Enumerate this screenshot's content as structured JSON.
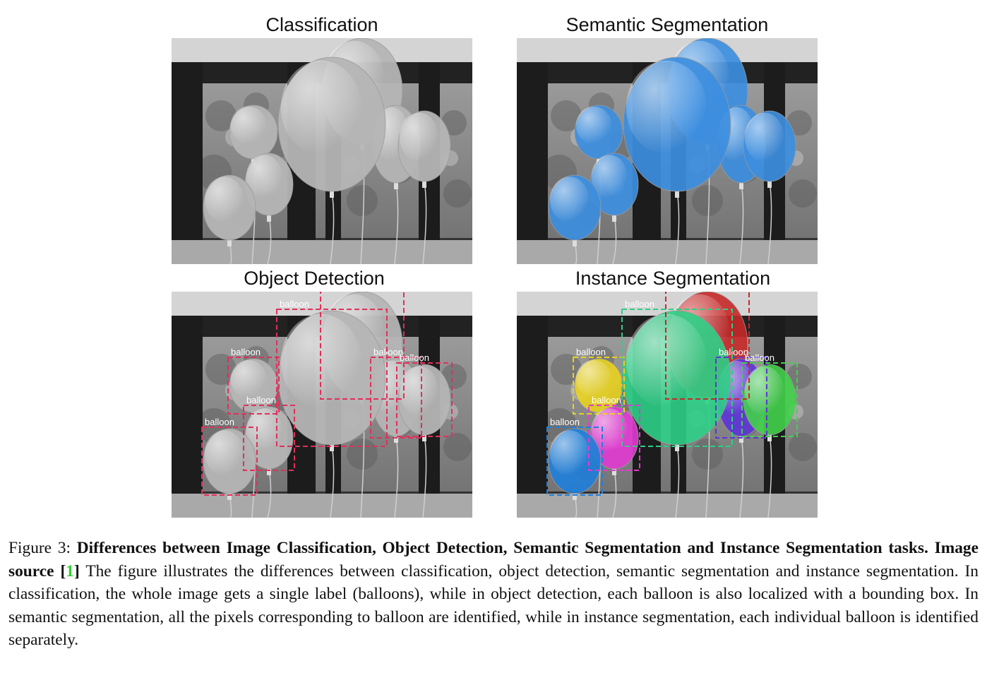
{
  "panels": {
    "classification": {
      "title": "Classification"
    },
    "semantic": {
      "title": "Semantic Segmentation"
    },
    "detection": {
      "title": "Object Detection"
    },
    "instance": {
      "title": "Instance Segmentation"
    }
  },
  "box_label": "balloon",
  "instance_colors": [
    "#c62828",
    "#5e35d8",
    "#43d14a",
    "#e8d21e",
    "#e23ad3",
    "#1f7fdc",
    "#2ecf86"
  ],
  "semantic_color": "#3d8ee0",
  "detection_color": "#e0305a",
  "caption": {
    "figure_label": "Figure 3:",
    "bold_text": "Differences between Image Classification, Object Detection, Semantic Segmentation and Instance Segmentation tasks. Image source [",
    "citation": "1",
    "bold_close": "]",
    "body": "The figure illustrates the differences between classification, object detection, semantic segmentation and instance segmentation. In classification, the whole image gets a single label (balloons), while in object detection, each balloon is also localized with a bounding box. In semantic segmentation, all the pixels corresponding to balloon are identified, while in instance segmentation, each individual balloon is identified separately."
  }
}
